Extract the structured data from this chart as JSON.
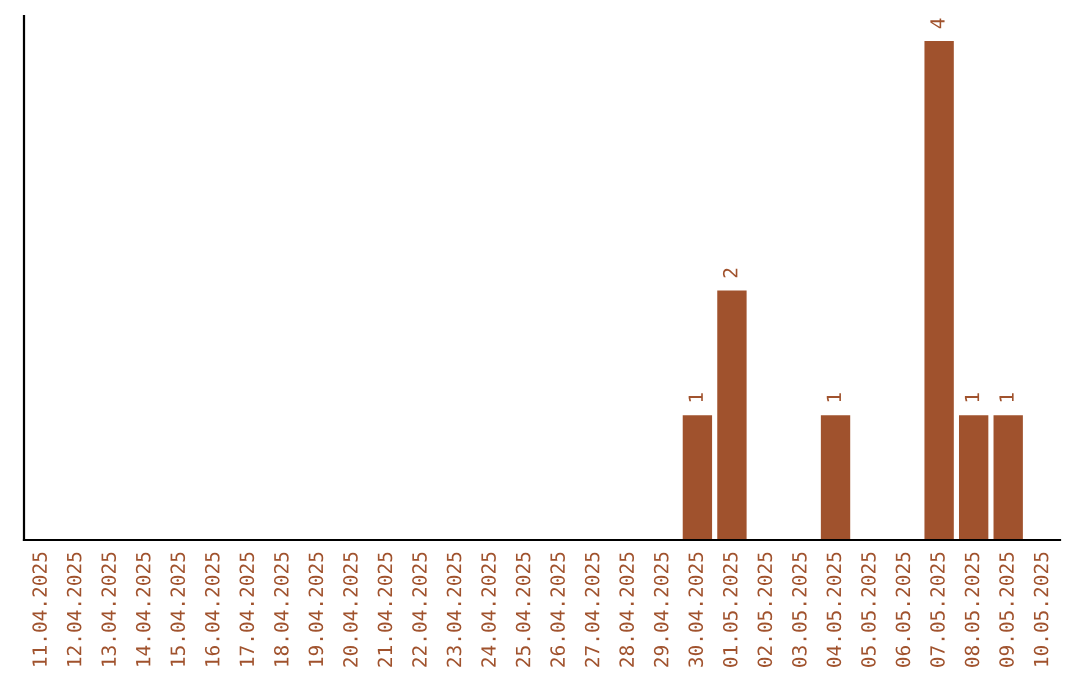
{
  "chart_data": {
    "type": "bar",
    "categories": [
      "11.04.2025",
      "12.04.2025",
      "13.04.2025",
      "14.04.2025",
      "15.04.2025",
      "16.04.2025",
      "17.04.2025",
      "18.04.2025",
      "19.04.2025",
      "20.04.2025",
      "21.04.2025",
      "22.04.2025",
      "23.04.2025",
      "24.04.2025",
      "25.04.2025",
      "26.04.2025",
      "27.04.2025",
      "28.04.2025",
      "29.04.2025",
      "30.04.2025",
      "01.05.2025",
      "02.05.2025",
      "03.05.2025",
      "04.05.2025",
      "05.05.2025",
      "06.05.2025",
      "07.05.2025",
      "08.05.2025",
      "09.05.2025",
      "10.05.2025"
    ],
    "values": [
      null,
      null,
      null,
      null,
      null,
      null,
      null,
      null,
      null,
      null,
      null,
      null,
      null,
      null,
      null,
      null,
      null,
      null,
      null,
      1,
      2,
      null,
      null,
      1,
      null,
      null,
      4,
      1,
      1,
      null
    ],
    "color": "#a0522d",
    "data_labels": true,
    "tick_labels": "x",
    "grid": false,
    "legend": false
  }
}
